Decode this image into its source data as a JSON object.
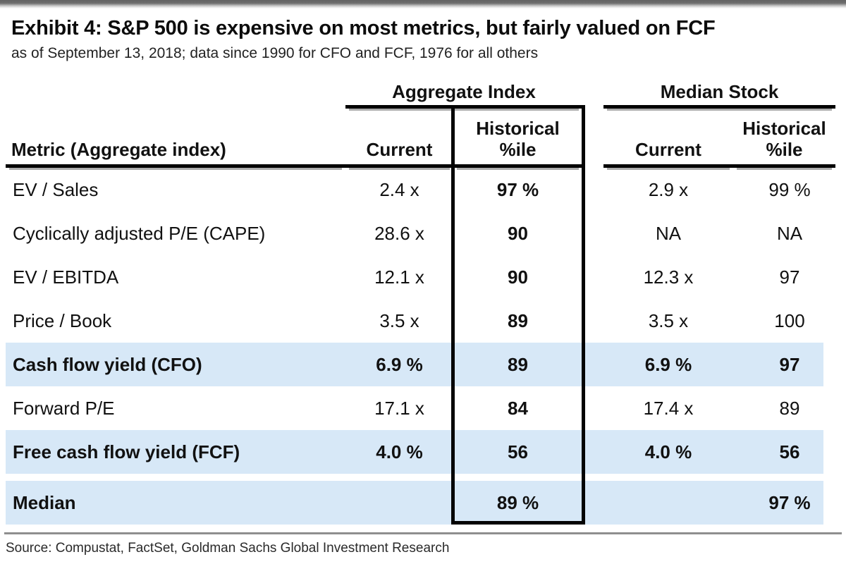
{
  "chart_data": {
    "type": "table",
    "title": "Exhibit 4: S&P 500 is expensive on most metrics, but fairly valued on FCF",
    "subtitle": "as of September 13, 2018; data since 1990 for CFO and FCF, 1976 for all others",
    "source": "Source: Compustat, FactSet, Goldman Sachs Global Investment Research",
    "group_headers": {
      "aggregate": "Aggregate Index",
      "median": "Median Stock"
    },
    "col_headers": {
      "metric": "Metric (Aggregate index)",
      "current": "Current",
      "historical_line1": "Historical",
      "historical_line2": "%ile"
    },
    "rows": [
      {
        "metric": "EV / Sales",
        "agg_current": "2.4 x",
        "agg_pctile": "97 %",
        "med_current": "2.9 x",
        "med_pctile": "99 %",
        "highlight": false
      },
      {
        "metric": "Cyclically adjusted P/E (CAPE)",
        "agg_current": "28.6 x",
        "agg_pctile": "90",
        "med_current": "NA",
        "med_pctile": "NA",
        "highlight": false
      },
      {
        "metric": "EV / EBITDA",
        "agg_current": "12.1 x",
        "agg_pctile": "90",
        "med_current": "12.3 x",
        "med_pctile": "97",
        "highlight": false
      },
      {
        "metric": "Price / Book",
        "agg_current": "3.5 x",
        "agg_pctile": "89",
        "med_current": "3.5 x",
        "med_pctile": "100",
        "highlight": false
      },
      {
        "metric": "Cash flow yield (CFO)",
        "agg_current": "6.9 %",
        "agg_pctile": "89",
        "med_current": "6.9 %",
        "med_pctile": "97",
        "highlight": true
      },
      {
        "metric": "Forward P/E",
        "agg_current": "17.1 x",
        "agg_pctile": "84",
        "med_current": "17.4 x",
        "med_pctile": "89",
        "highlight": false
      },
      {
        "metric": "Free cash flow yield (FCF)",
        "agg_current": "4.0 %",
        "agg_pctile": "56",
        "med_current": "4.0 %",
        "med_pctile": "56",
        "highlight": true
      },
      {
        "metric": "Median",
        "agg_current": "",
        "agg_pctile": "89 %",
        "med_current": "",
        "med_pctile": "97 %",
        "highlight": true
      }
    ],
    "colors": {
      "highlight_row": "#D7E8F7",
      "box_border": "#000000",
      "divider_gray": "#8f8f8f"
    }
  }
}
